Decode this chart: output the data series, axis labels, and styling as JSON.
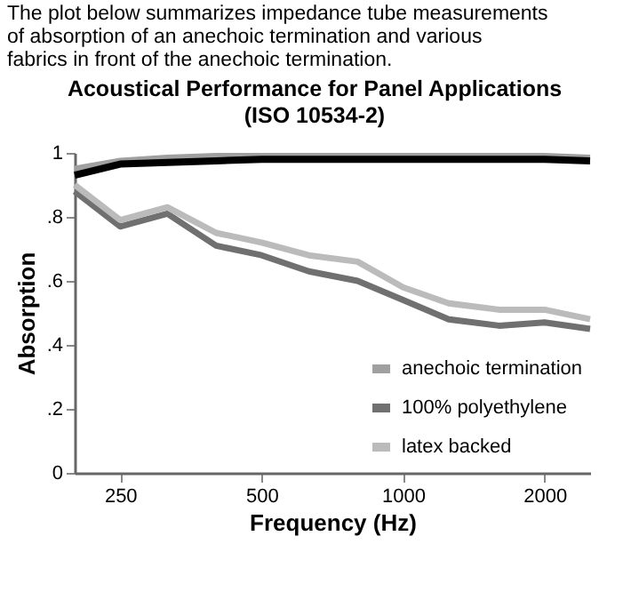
{
  "chart_data": {
    "type": "line",
    "title": "Acoustical Performance for Panel Applications",
    "subtitle": "(ISO 10534-2)",
    "xlabel": "Frequency (Hz)",
    "ylabel": "Absorption",
    "annotations": [
      "The plot below summarizes impedance tube measurements of absorption of an anechoic termination and various fabrics in front of the anechoic termination."
    ],
    "x": [
      200,
      250,
      315,
      400,
      500,
      630,
      800,
      1000,
      1250,
      1600,
      2000,
      2500
    ],
    "series": [
      {
        "name": "anechoic termination",
        "color": "#a0a0a0",
        "values": [
          0.95,
          0.975,
          0.985,
          0.99,
          0.99,
          0.99,
          0.99,
          0.99,
          0.99,
          0.99,
          0.99,
          0.985
        ]
      },
      {
        "color": "#000000",
        "values": [
          0.93,
          0.965,
          0.97,
          0.975,
          0.98,
          0.98,
          0.98,
          0.98,
          0.98,
          0.98,
          0.98,
          0.975
        ]
      },
      {
        "name": "100% polyethylene",
        "color": "#707070",
        "values": [
          0.88,
          0.77,
          0.81,
          0.71,
          0.68,
          0.63,
          0.6,
          0.54,
          0.48,
          0.46,
          0.47,
          0.45
        ]
      },
      {
        "name": "latex backed",
        "color": "#bbbbbb",
        "values": [
          0.9,
          0.79,
          0.83,
          0.75,
          0.72,
          0.68,
          0.66,
          0.58,
          0.53,
          0.51,
          0.51,
          0.48
        ]
      }
    ],
    "log": "x",
    "xlim": [
      200,
      2500
    ],
    "xticks": [
      250,
      500,
      {
        "value": 1000,
        "label": "1000"
      },
      {
        "value": 2000,
        "label": "2000"
      }
    ],
    "ylim": [
      0,
      1
    ],
    "yticks": [
      {
        "value": 0,
        "label": "0"
      },
      {
        "value": 0.2,
        "label": ".2"
      },
      {
        "value": 0.4,
        "label": ".4"
      },
      {
        "value": 0.6,
        "label": ".6"
      },
      {
        "value": 0.8,
        "label": ".8"
      },
      1
    ],
    "grid": false,
    "legend": "bottom right",
    "marker": "none",
    "line_style": "solid"
  }
}
